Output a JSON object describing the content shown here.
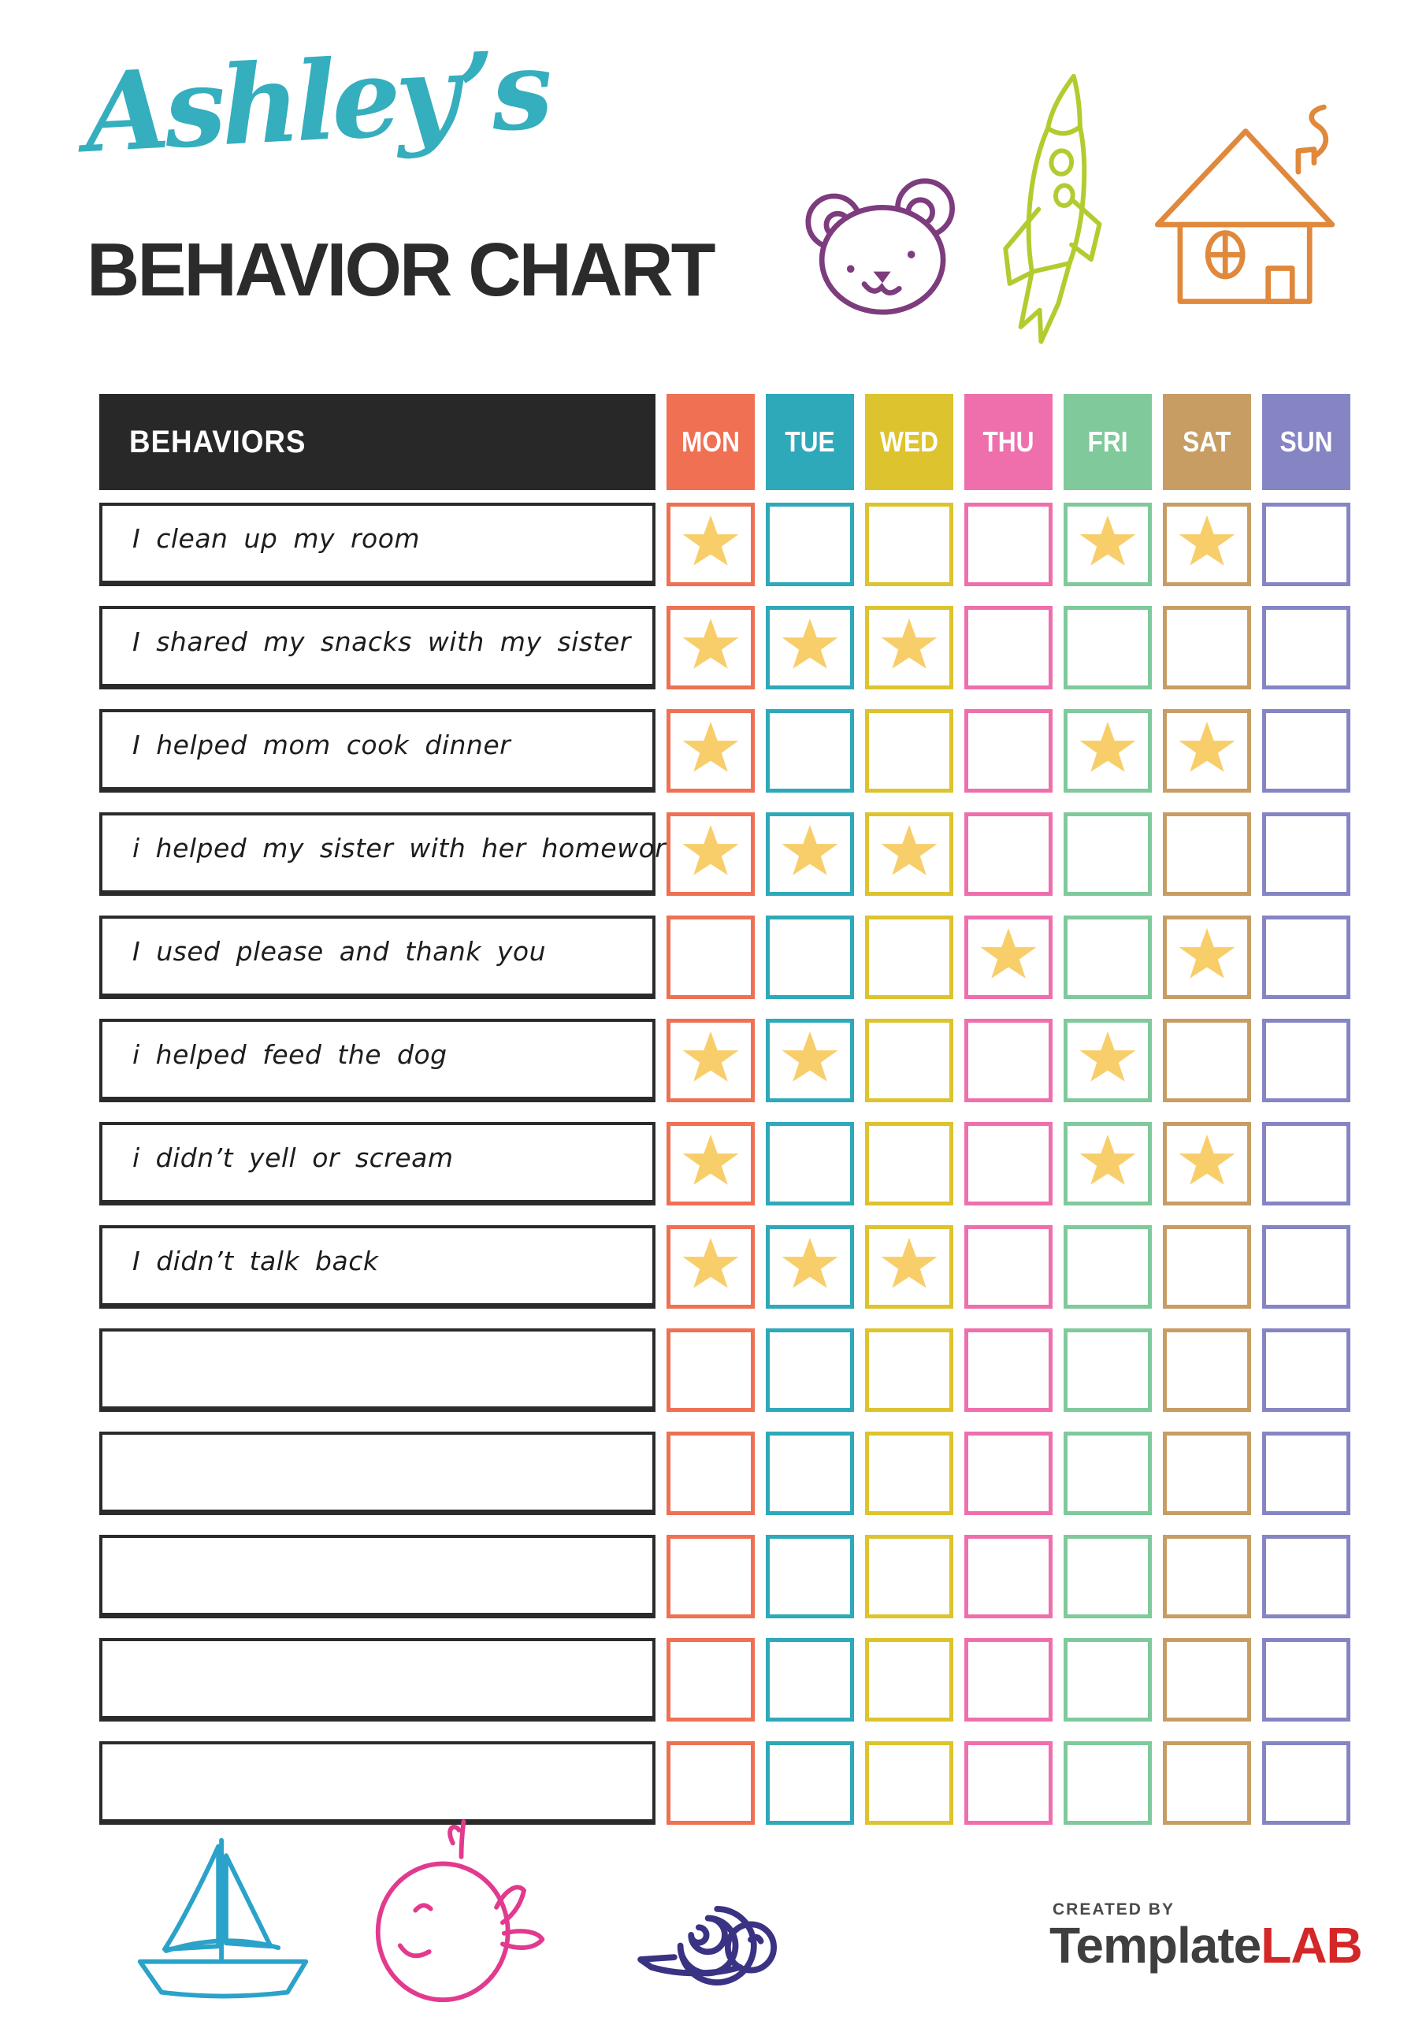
{
  "header": {
    "script_title": "Ashley’s",
    "main_title": "BEHAVIOR CHART",
    "script_color": "#35aebe",
    "main_color": "#2b2b2b"
  },
  "decorations": {
    "top": [
      {
        "name": "bear-icon",
        "color": "#7d3c7e"
      },
      {
        "name": "rocket-icon",
        "color": "#b2cc2f"
      },
      {
        "name": "house-icon",
        "color": "#e0883b"
      }
    ],
    "bottom": [
      {
        "name": "sailboat-icon",
        "color": "#2ba2c9"
      },
      {
        "name": "whale-icon",
        "color": "#e23a8e"
      },
      {
        "name": "snail-icon",
        "color": "#3a3384"
      }
    ]
  },
  "table": {
    "behaviors_header": "BEHAVIORS",
    "header_bg": "#282828",
    "star_color": "#f8ce6b",
    "days": [
      {
        "label": "MON",
        "color": "#ef7053"
      },
      {
        "label": "TUE",
        "color": "#2ea9b9"
      },
      {
        "label": "WED",
        "color": "#ddc32d"
      },
      {
        "label": "THU",
        "color": "#ef6fad"
      },
      {
        "label": "FRI",
        "color": "#7fc99b"
      },
      {
        "label": "SAT",
        "color": "#c79d64"
      },
      {
        "label": "SUN",
        "color": "#8585c4"
      }
    ],
    "rows": [
      {
        "behavior": "I clean up my room",
        "stars": [
          1,
          0,
          0,
          0,
          1,
          1,
          0
        ]
      },
      {
        "behavior": "I shared my snacks with my sister",
        "stars": [
          1,
          1,
          1,
          0,
          0,
          0,
          0
        ]
      },
      {
        "behavior": "I helped mom cook dinner",
        "stars": [
          1,
          0,
          0,
          0,
          1,
          1,
          0
        ]
      },
      {
        "behavior": "i helped my sister with her homework",
        "stars": [
          1,
          1,
          1,
          0,
          0,
          0,
          0
        ]
      },
      {
        "behavior": "I used please and thank you",
        "stars": [
          0,
          0,
          0,
          1,
          0,
          1,
          0
        ]
      },
      {
        "behavior": "i helped feed the dog",
        "stars": [
          1,
          1,
          0,
          0,
          1,
          0,
          0
        ]
      },
      {
        "behavior": "i didn’t yell or scream",
        "stars": [
          1,
          0,
          0,
          0,
          1,
          1,
          0
        ]
      },
      {
        "behavior": "I didn’t talk back",
        "stars": [
          1,
          1,
          1,
          0,
          0,
          0,
          0
        ]
      },
      {
        "behavior": "",
        "stars": [
          0,
          0,
          0,
          0,
          0,
          0,
          0
        ]
      },
      {
        "behavior": "",
        "stars": [
          0,
          0,
          0,
          0,
          0,
          0,
          0
        ]
      },
      {
        "behavior": "",
        "stars": [
          0,
          0,
          0,
          0,
          0,
          0,
          0
        ]
      },
      {
        "behavior": "",
        "stars": [
          0,
          0,
          0,
          0,
          0,
          0,
          0
        ]
      },
      {
        "behavior": "",
        "stars": [
          0,
          0,
          0,
          0,
          0,
          0,
          0
        ]
      }
    ]
  },
  "footer": {
    "created_by": "CREATED BY",
    "brand_primary": "Template",
    "brand_secondary": "LAB",
    "brand_primary_color": "#3f3f3f",
    "brand_secondary_color": "#d32728"
  }
}
